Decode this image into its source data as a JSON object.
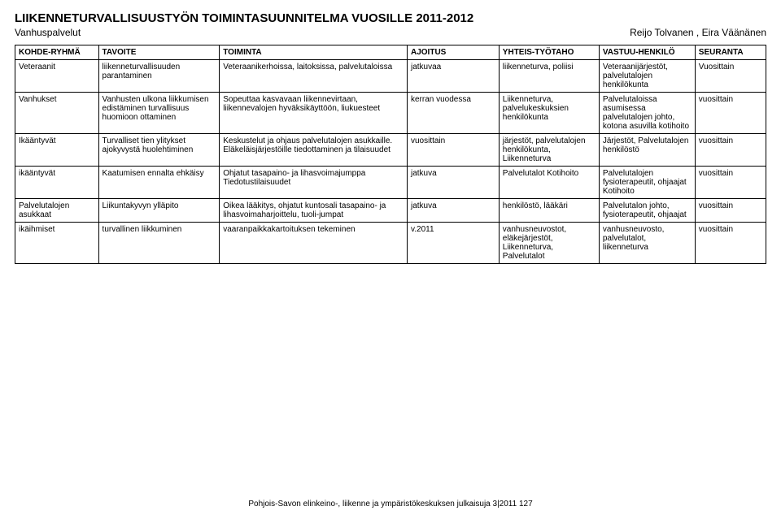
{
  "header": {
    "title": "LIIKENNETURVALLISUUSTYÖN TOIMINTASUUNNITELMA VUOSILLE 2011-2012",
    "subtitle_left": "Vanhuspalvelut",
    "subtitle_right": "Reijo Tolvanen , Eira Väänänen"
  },
  "table": {
    "columns": [
      "KOHDE-RYHMÄ",
      "TAVOITE",
      "TOIMINTA",
      "AJOITUS",
      "YHTEIS-TYÖTAHO",
      "VASTUU-HENKILÖ",
      "SEURANTA"
    ],
    "rows": [
      {
        "c0": "Veteraanit",
        "c1": "liikenneturvallisuuden parantaminen",
        "c2": "Veteraanikerhoissa, laitoksissa, palvelutaloissa",
        "c3": "jatkuvaa",
        "c4": "liikenneturva, poliisi",
        "c5": "Veteraanijärjestöt, palvelutalojen henkilökunta",
        "c6": "Vuosittain"
      },
      {
        "c0": "Vanhukset",
        "c1": "Vanhusten ulkona liikkumisen edistäminen turvallisuus huomioon ottaminen",
        "c2": "Sopeuttaa kasvavaan liikennevirtaan, liikennevalojen hyväksikäyttöön, liukuesteet",
        "c3": "kerran vuodessa",
        "c4": "Liikenneturva, palvelukeskuksien henkilökunta",
        "c5": "Palvelutaloissa asumisessa palvelutalojen johto, kotona asuvilla kotihoito",
        "c6": "vuosittain"
      },
      {
        "c0": "Ikääntyvät",
        "c1": "Turvalliset tien ylitykset ajokyvystä huolehtiminen",
        "c2": "Keskustelut ja ohjaus palvelutalojen asukkaille.\nEläkeläisjärjestöille tiedottaminen ja tilaisuudet",
        "c3": "vuosittain",
        "c4": "järjestöt, palvelutalojen henkilökunta, Liikenneturva",
        "c5": "Järjestöt, Palvelutalojen henkilöstö",
        "c6": "vuosittain"
      },
      {
        "c0": "ikääntyvät",
        "c1": "Kaatumisen ennalta ehkäisy",
        "c2": "Ohjatut tasapaino- ja lihasvoimajumppa\nTiedotustilaisuudet",
        "c3": "jatkuva",
        "c4": "Palvelutalot Kotihoito",
        "c5": "Palvelutalojen fysioterapeutit, ohjaajat Kotihoito",
        "c6": "vuosittain"
      },
      {
        "c0": "Palvelutalojen asukkaat",
        "c1": "Liikuntakyvyn ylläpito",
        "c2": "Oikea lääkitys, ohjatut kuntosali tasapaino- ja lihasvoimaharjoittelu, tuoli-jumpat",
        "c3": "jatkuva",
        "c4": "henkilöstö, lääkäri",
        "c5": "Palvelutalon johto, fysioterapeutit, ohjaajat",
        "c6": "vuosittain"
      },
      {
        "c0": "ikäihmiset",
        "c1": "turvallinen liikkuminen",
        "c2": "vaaranpaikkakartoituksen tekeminen",
        "c3": "v.2011",
        "c4": "vanhusneuvostot, eläkejärjestöt, Liikenneturva, Palvelutalot",
        "c5": "vanhusneuvosto, palvelutalot, liikenneturva",
        "c6": "vuosittain"
      }
    ]
  },
  "footer": {
    "text": "Pohjois-Savon elinkeino-, liikenne ja ympäristökeskuksen julkaisuja 3|2011     127"
  },
  "style": {
    "background": "#ffffff",
    "text_color": "#000000",
    "border_color": "#000000",
    "title_fs": 15,
    "subtitle_fs": 12,
    "cell_fs": 10
  }
}
